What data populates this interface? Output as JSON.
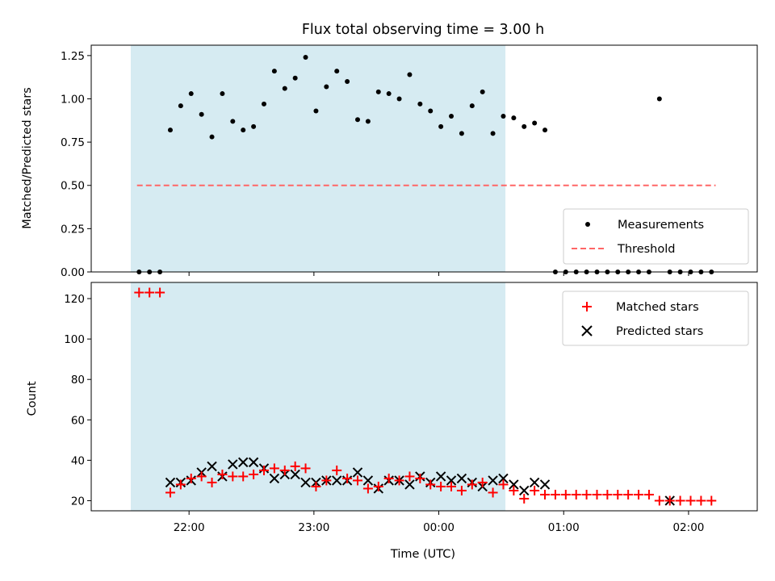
{
  "chart_data": [
    {
      "type": "scatter",
      "panel": "top",
      "title": "Flux total observing time = 3.00 h",
      "xlabel": "",
      "ylabel": "Matched/Predicted stars",
      "ylim": [
        0,
        1.31
      ],
      "xlim": [
        "21:13",
        "02:33"
      ],
      "y_ticks": [
        "0.00",
        "0.25",
        "0.50",
        "0.75",
        "1.00",
        "1.25"
      ],
      "shaded_interval": {
        "start": "21:32",
        "end": "00:32",
        "color": "#add8e6"
      },
      "threshold": {
        "label": "Threshold",
        "value": 0.5,
        "from": "21:35",
        "to": "02:13",
        "color": "#ff6666"
      },
      "legend": {
        "position": "lower-right",
        "entries": [
          "Measurements",
          "Threshold"
        ]
      },
      "series": [
        {
          "name": "Measurements",
          "marker": "dot",
          "color": "#000000",
          "x": [
            "21:36",
            "21:41",
            "21:46",
            "21:51",
            "21:56",
            "22:01",
            "22:06",
            "22:11",
            "22:16",
            "22:21",
            "22:26",
            "22:31",
            "22:36",
            "22:41",
            "22:46",
            "22:51",
            "22:56",
            "23:01",
            "23:06",
            "23:11",
            "23:16",
            "23:21",
            "23:26",
            "23:31",
            "23:36",
            "23:41",
            "23:46",
            "23:51",
            "23:56",
            "00:01",
            "00:06",
            "00:11",
            "00:16",
            "00:21",
            "00:26",
            "00:31",
            "00:36",
            "00:41",
            "00:46",
            "00:51",
            "00:56",
            "01:01",
            "01:06",
            "01:11",
            "01:16",
            "01:21",
            "01:26",
            "01:31",
            "01:36",
            "01:41",
            "01:46",
            "01:51",
            "01:56",
            "02:01",
            "02:06",
            "02:11"
          ],
          "y": [
            0,
            0,
            0,
            0.82,
            0.96,
            1.03,
            0.91,
            0.78,
            1.03,
            0.87,
            0.82,
            0.84,
            0.97,
            1.16,
            1.06,
            1.12,
            1.24,
            0.93,
            1.07,
            1.16,
            1.1,
            0.88,
            0.87,
            1.04,
            1.03,
            1.0,
            1.14,
            0.97,
            0.93,
            0.84,
            0.9,
            0.8,
            0.96,
            1.04,
            0.8,
            0.9,
            0.89,
            0.84,
            0.86,
            0.82,
            0,
            0,
            0,
            0,
            0,
            0,
            0,
            0,
            0,
            0,
            1.0,
            0,
            0,
            0,
            0,
            0
          ]
        }
      ]
    },
    {
      "type": "scatter",
      "panel": "bottom",
      "title": "",
      "xlabel": "Time (UTC)",
      "ylabel": "Count",
      "ylim": [
        15,
        128
      ],
      "xlim": [
        "21:13",
        "02:33"
      ],
      "x_ticks": [
        "22:00",
        "23:00",
        "00:00",
        "01:00",
        "02:00"
      ],
      "y_ticks": [
        "20",
        "40",
        "60",
        "80",
        "100",
        "120"
      ],
      "shaded_interval": {
        "start": "21:32",
        "end": "00:32",
        "color": "#add8e6"
      },
      "legend": {
        "position": "upper-right",
        "entries": [
          "Matched stars",
          "Predicted stars"
        ]
      },
      "series": [
        {
          "name": "Matched stars",
          "marker": "plus",
          "color": "#ff0000",
          "x": [
            "21:36",
            "21:41",
            "21:46",
            "21:51",
            "21:56",
            "22:01",
            "22:06",
            "22:11",
            "22:16",
            "22:21",
            "22:26",
            "22:31",
            "22:36",
            "22:41",
            "22:46",
            "22:51",
            "22:56",
            "23:01",
            "23:06",
            "23:11",
            "23:16",
            "23:21",
            "23:26",
            "23:31",
            "23:36",
            "23:41",
            "23:46",
            "23:51",
            "23:56",
            "00:01",
            "00:06",
            "00:11",
            "00:16",
            "00:21",
            "00:26",
            "00:31",
            "00:36",
            "00:41",
            "00:46",
            "00:51",
            "00:56",
            "01:01",
            "01:06",
            "01:11",
            "01:16",
            "01:21",
            "01:26",
            "01:31",
            "01:36",
            "01:41",
            "01:46",
            "01:51",
            "01:56",
            "02:01",
            "02:06",
            "02:11"
          ],
          "y": [
            123,
            123,
            123,
            24,
            28,
            31,
            32,
            29,
            33,
            32,
            32,
            33,
            35,
            36,
            35,
            37,
            36,
            27,
            30,
            35,
            31,
            30,
            26,
            27,
            31,
            30,
            32,
            31,
            28,
            27,
            27,
            25,
            28,
            29,
            24,
            28,
            25,
            21,
            25,
            23,
            23,
            23,
            23,
            23,
            23,
            23,
            23,
            23,
            23,
            23,
            20,
            20,
            20,
            20,
            20,
            20
          ]
        },
        {
          "name": "Predicted stars",
          "marker": "x",
          "color": "#000000",
          "x": [
            "21:51",
            "21:56",
            "22:01",
            "22:06",
            "22:11",
            "22:16",
            "22:21",
            "22:26",
            "22:31",
            "22:36",
            "22:41",
            "22:46",
            "22:51",
            "22:56",
            "23:01",
            "23:06",
            "23:11",
            "23:16",
            "23:21",
            "23:26",
            "23:31",
            "23:36",
            "23:41",
            "23:46",
            "23:51",
            "23:56",
            "00:01",
            "00:06",
            "00:11",
            "00:16",
            "00:21",
            "00:26",
            "00:31",
            "00:36",
            "00:41",
            "00:46",
            "00:51",
            "00:56",
            "01:01",
            "01:06",
            "01:11",
            "01:16",
            "01:21",
            "01:26",
            "01:31",
            "01:36",
            "01:41",
            "01:46",
            "01:51",
            "01:56",
            "02:01",
            "02:06",
            "02:11"
          ],
          "y": [
            29,
            29,
            30,
            34,
            37,
            32,
            38,
            39,
            39,
            36,
            31,
            33,
            33,
            29,
            29,
            30,
            30,
            30,
            34,
            30,
            26,
            30,
            30,
            28,
            32,
            29,
            32,
            30,
            31,
            29,
            27,
            30,
            31,
            28,
            25,
            29,
            28,
            null,
            null,
            null,
            null,
            null,
            null,
            null,
            null,
            null,
            null,
            null,
            20,
            null,
            null,
            null,
            null
          ]
        }
      ]
    }
  ]
}
